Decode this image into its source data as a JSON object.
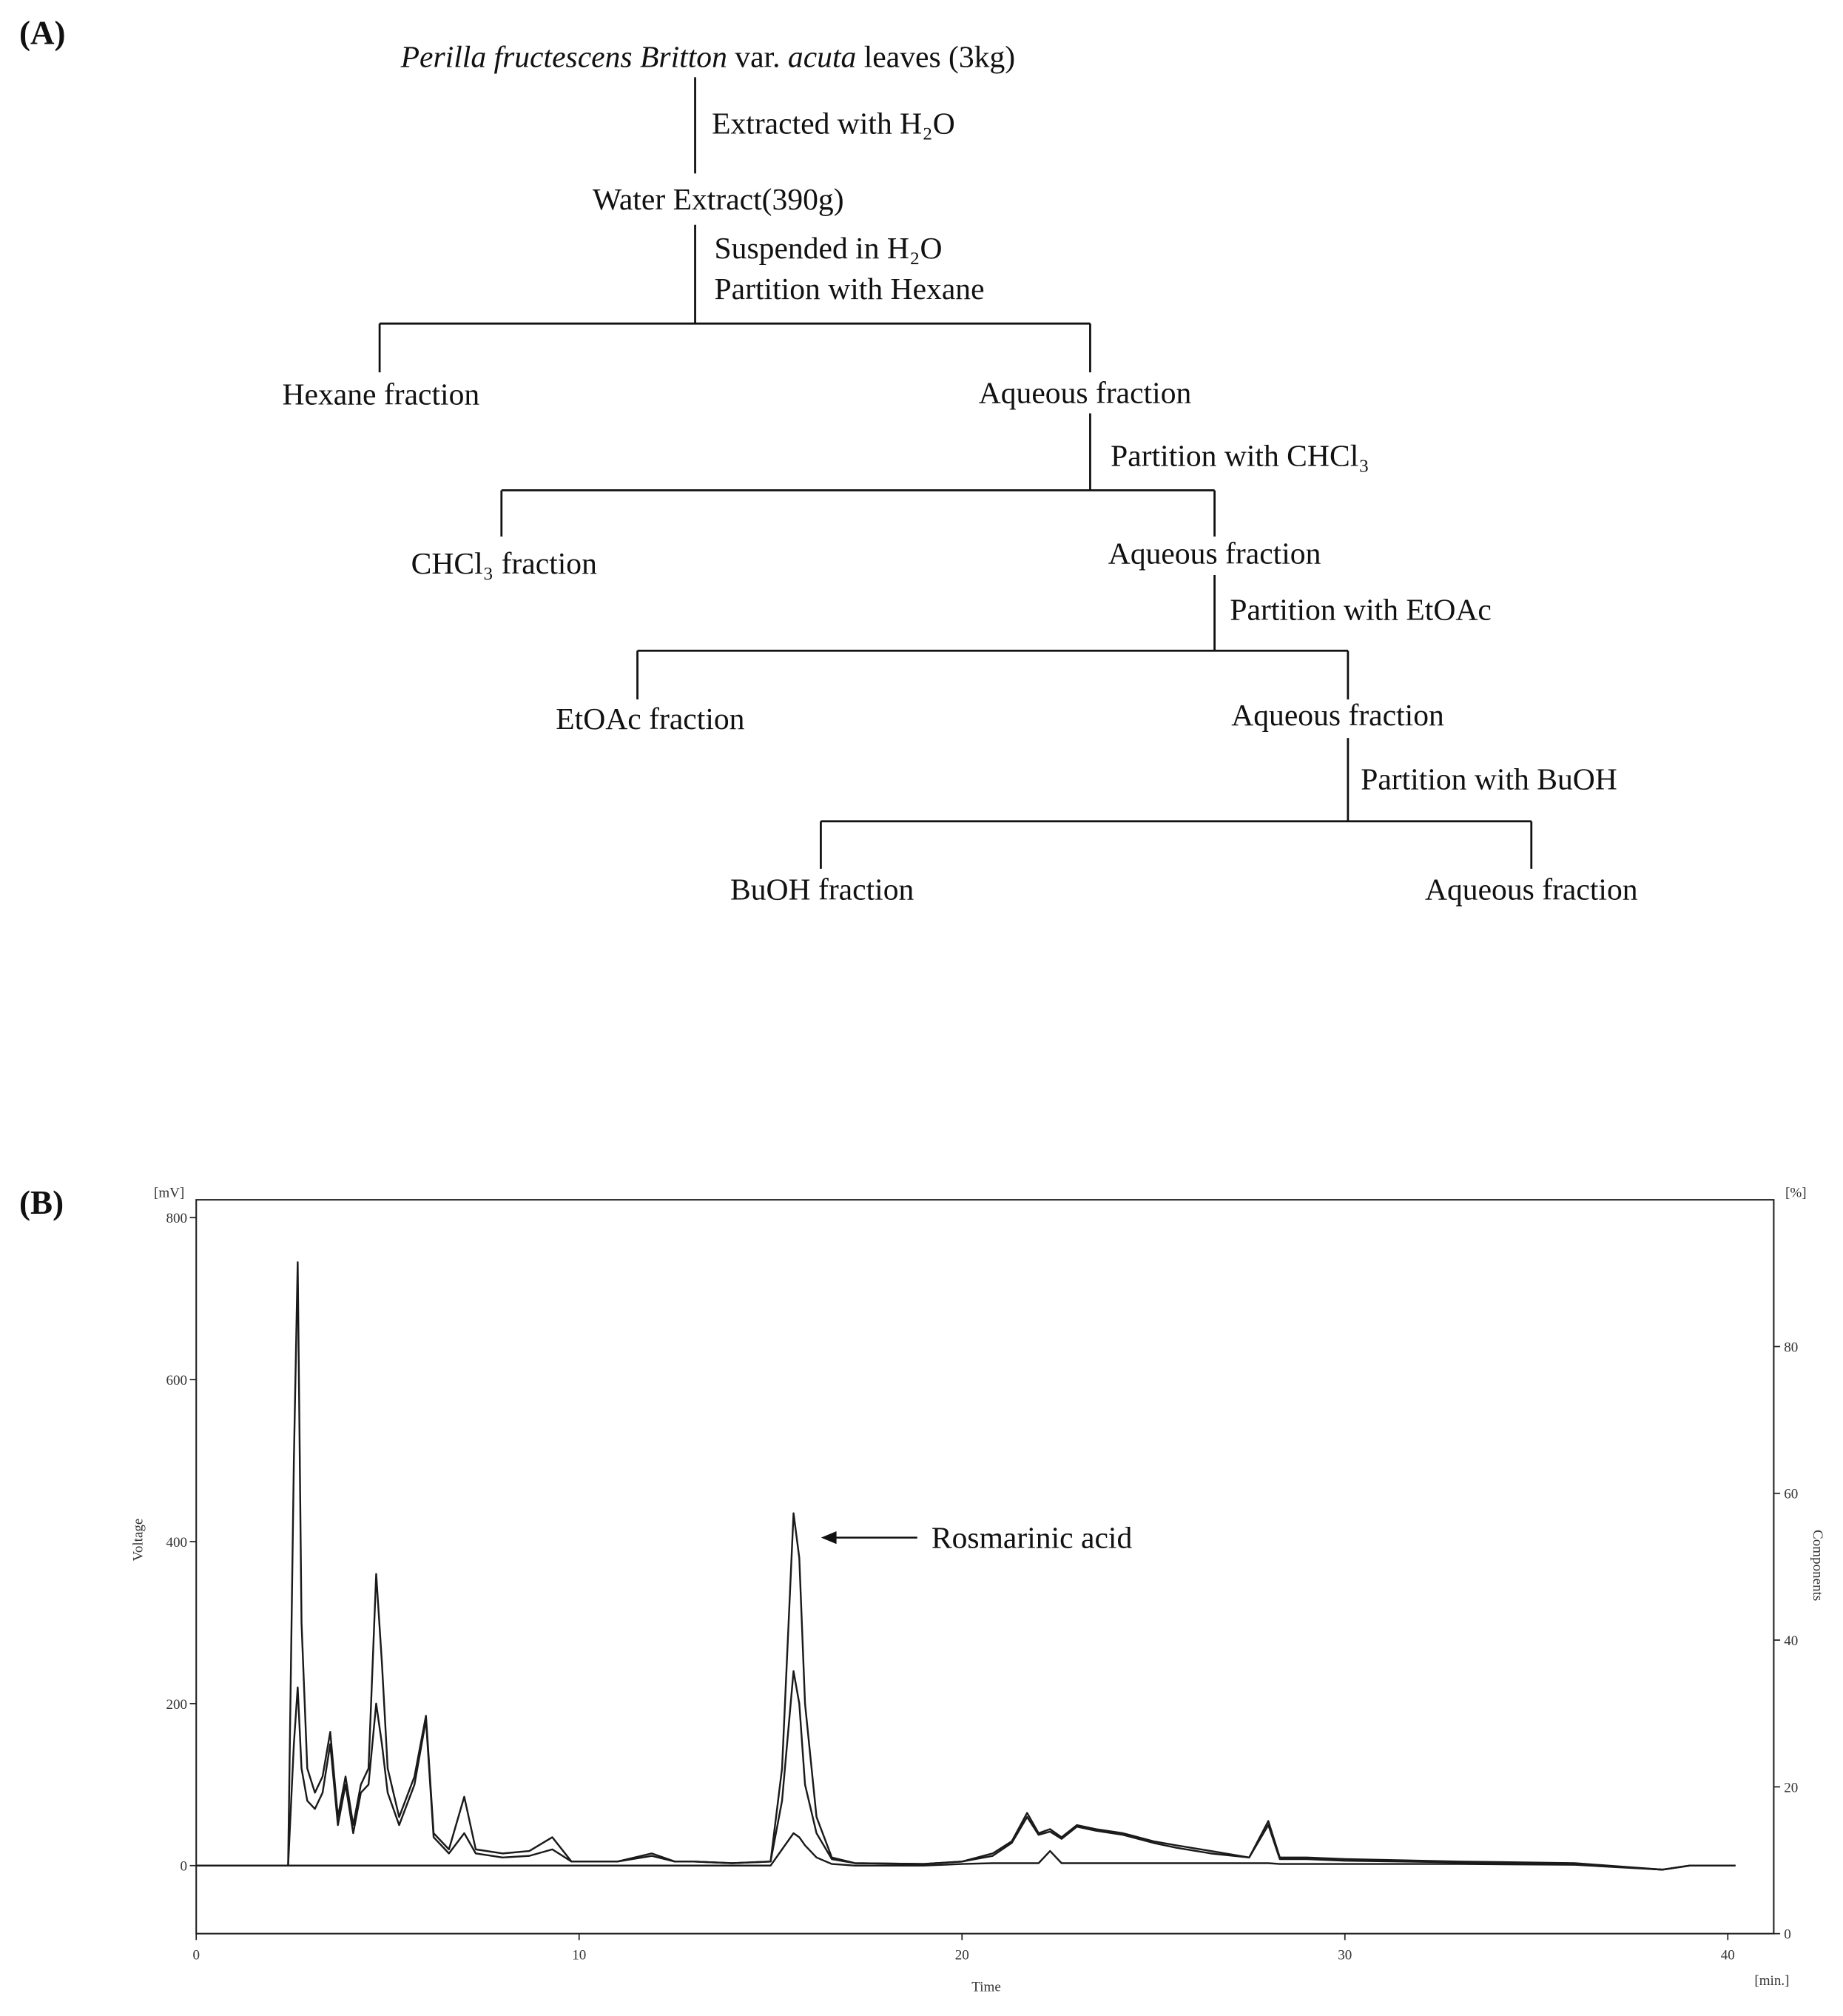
{
  "panel_a": {
    "label": "(A)",
    "source": [
      "Perilla fructescens Britton",
      " var. ",
      "acuta",
      " leaves (3kg)"
    ],
    "steps": [
      "Extracted with H₂O",
      "Suspended in H₂O",
      "Partition with Hexane",
      "Partition with CHCl₃",
      "Partition with EtOAc",
      "Partition with BuOH"
    ],
    "nodes": [
      "Water Extract(390g)",
      "Hexane fraction",
      "Aqueous fraction",
      "CHCl₃ fraction",
      "Aqueous fraction",
      "EtOAc fraction",
      "Aqueous fraction",
      "BuOH fraction",
      "Aqueous fraction"
    ]
  },
  "chart_data": {
    "type": "line",
    "panel_label": "(B)",
    "x_label": "Time",
    "x_unit": "[min.]",
    "y_label": "Voltage",
    "y_unit": "[mV]",
    "y2_label": "Components",
    "y2_unit": "[%]",
    "annotations": [
      {
        "text": "Rosmarinic acid",
        "x": 15.75,
        "y": 435
      }
    ],
    "xlim": [
      0,
      41.2
    ],
    "xticks": [
      0,
      10,
      20,
      30,
      40
    ],
    "ylim": [
      -84,
      822
    ],
    "yticks": [
      0,
      200,
      400,
      600,
      800
    ],
    "y2lim": [
      0,
      100
    ],
    "y2ticks": [
      0,
      20,
      40,
      60,
      80
    ],
    "color": "#1a1a1a",
    "x": [
      0,
      2.4,
      2.55,
      2.65,
      2.75,
      2.9,
      3.1,
      3.3,
      3.5,
      3.7,
      3.9,
      4.1,
      4.3,
      4.5,
      4.7,
      4.85,
      5.0,
      5.3,
      5.7,
      6.0,
      6.2,
      6.6,
      7.0,
      7.3,
      8.0,
      8.7,
      9.3,
      9.8,
      11.0,
      11.9,
      12.5,
      13.0,
      14.0,
      15.0,
      15.3,
      15.6,
      15.75,
      15.9,
      16.2,
      16.6,
      17.2,
      19.0,
      20.0,
      20.8,
      21.3,
      21.7,
      22.0,
      22.3,
      22.6,
      23.0,
      23.5,
      24.2,
      25.0,
      25.6,
      26.5,
      27.5,
      28.0,
      28.3,
      29.0,
      30.0,
      33.0,
      36.0,
      38.3,
      39.0,
      40.2
    ],
    "series": [
      {
        "values": [
          0,
          0,
          500,
          745,
          300,
          120,
          90,
          110,
          165,
          60,
          110,
          50,
          100,
          120,
          360,
          250,
          120,
          60,
          110,
          185,
          40,
          20,
          85,
          20,
          15,
          18,
          35,
          5,
          5,
          15,
          5,
          5,
          3,
          5,
          120,
          435,
          380,
          200,
          60,
          10,
          3,
          2,
          5,
          15,
          30,
          65,
          40,
          45,
          35,
          50,
          45,
          40,
          30,
          25,
          18,
          10,
          55,
          10,
          10,
          8,
          5,
          3,
          -5,
          0,
          0
        ]
      },
      {
        "values": [
          0,
          0,
          150,
          220,
          120,
          80,
          70,
          90,
          150,
          50,
          100,
          40,
          90,
          100,
          200,
          150,
          90,
          50,
          100,
          180,
          35,
          15,
          40,
          15,
          10,
          12,
          20,
          5,
          5,
          12,
          5,
          5,
          3,
          5,
          80,
          240,
          200,
          100,
          40,
          8,
          3,
          2,
          5,
          12,
          28,
          60,
          38,
          42,
          33,
          48,
          43,
          38,
          28,
          22,
          15,
          10,
          50,
          8,
          8,
          6,
          4,
          2,
          -5,
          0,
          0
        ]
      },
      {
        "values": [
          0,
          0,
          0,
          0,
          0,
          0,
          0,
          0,
          0,
          0,
          0,
          0,
          0,
          0,
          0,
          0,
          0,
          0,
          0,
          0,
          0,
          0,
          0,
          0,
          0,
          0,
          0,
          0,
          0,
          0,
          0,
          0,
          0,
          0,
          20,
          40,
          35,
          25,
          10,
          2,
          0,
          0,
          2,
          3,
          3,
          3,
          3,
          18,
          3,
          3,
          3,
          3,
          3,
          3,
          3,
          3,
          3,
          2,
          2,
          2,
          2,
          1,
          -5,
          0,
          0
        ]
      }
    ]
  }
}
